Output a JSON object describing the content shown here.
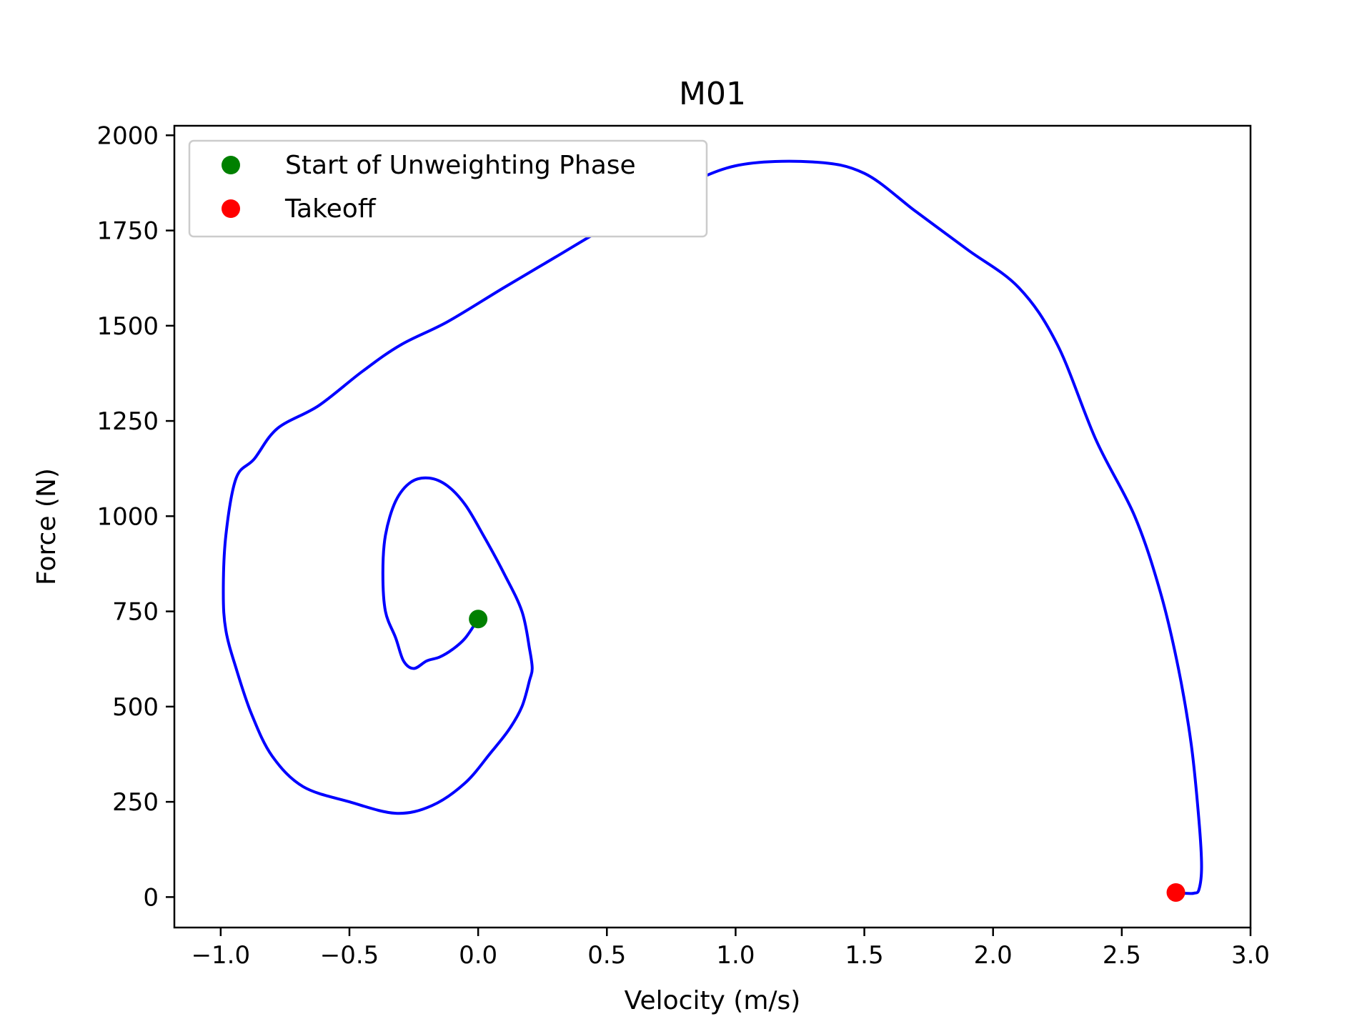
{
  "chart_data": {
    "type": "line",
    "title": "M01",
    "xlabel": "Velocity (m/s)",
    "ylabel": "Force (N)",
    "xlim": [
      -1.18,
      3.0
    ],
    "ylim": [
      -80,
      2025
    ],
    "xticks": [
      -1.0,
      -0.5,
      0.0,
      0.5,
      1.0,
      1.5,
      2.0,
      2.5,
      3.0
    ],
    "xtick_labels": [
      "−1.0",
      "−0.5",
      "0.0",
      "0.5",
      "1.0",
      "1.5",
      "2.0",
      "2.5",
      "3.0"
    ],
    "yticks": [
      0,
      250,
      500,
      750,
      1000,
      1250,
      1500,
      1750,
      2000
    ],
    "ytick_labels": [
      "0",
      "250",
      "500",
      "750",
      "1000",
      "1250",
      "1500",
      "1750",
      "2000"
    ],
    "grid": false,
    "legend_position": "top-left",
    "series": [
      {
        "color": "#0000ff",
        "x": [
          0.0,
          -0.05,
          -0.1,
          -0.15,
          -0.2,
          -0.25,
          -0.29,
          -0.32,
          -0.36,
          -0.37,
          -0.36,
          -0.32,
          -0.26,
          -0.19,
          -0.12,
          -0.05,
          0.02,
          0.1,
          0.17,
          0.2,
          0.21,
          0.2,
          0.17,
          0.12,
          0.05,
          -0.05,
          -0.18,
          -0.32,
          -0.5,
          -0.68,
          -0.8,
          -0.88,
          -0.94,
          -0.98,
          -0.99,
          -0.98,
          -0.94,
          -0.87,
          -0.78,
          -0.62,
          -0.45,
          -0.3,
          -0.12,
          0.1,
          0.3,
          0.5,
          0.75,
          1.0,
          1.3,
          1.5,
          1.7,
          1.9,
          2.1,
          2.25,
          2.4,
          2.55,
          2.65,
          2.72,
          2.77,
          2.8,
          2.81,
          2.8,
          2.78,
          2.74,
          2.71
        ],
        "y": [
          730,
          680,
          650,
          630,
          620,
          600,
          620,
          680,
          750,
          850,
          950,
          1040,
          1090,
          1100,
          1080,
          1030,
          950,
          850,
          750,
          650,
          600,
          570,
          500,
          440,
          380,
          300,
          240,
          220,
          250,
          290,
          370,
          480,
          600,
          700,
          800,
          950,
          1100,
          1150,
          1230,
          1290,
          1380,
          1450,
          1510,
          1600,
          1680,
          1760,
          1850,
          1920,
          1930,
          1900,
          1800,
          1700,
          1600,
          1450,
          1200,
          1000,
          800,
          600,
          400,
          200,
          80,
          20,
          10,
          10,
          12
        ]
      }
    ],
    "markers": [
      {
        "label": "Start of Unweighting Phase",
        "color": "#008000",
        "x": 0.0,
        "y": 730
      },
      {
        "label": "Takeoff",
        "color": "#ff0000",
        "x": 2.71,
        "y": 12
      }
    ]
  }
}
